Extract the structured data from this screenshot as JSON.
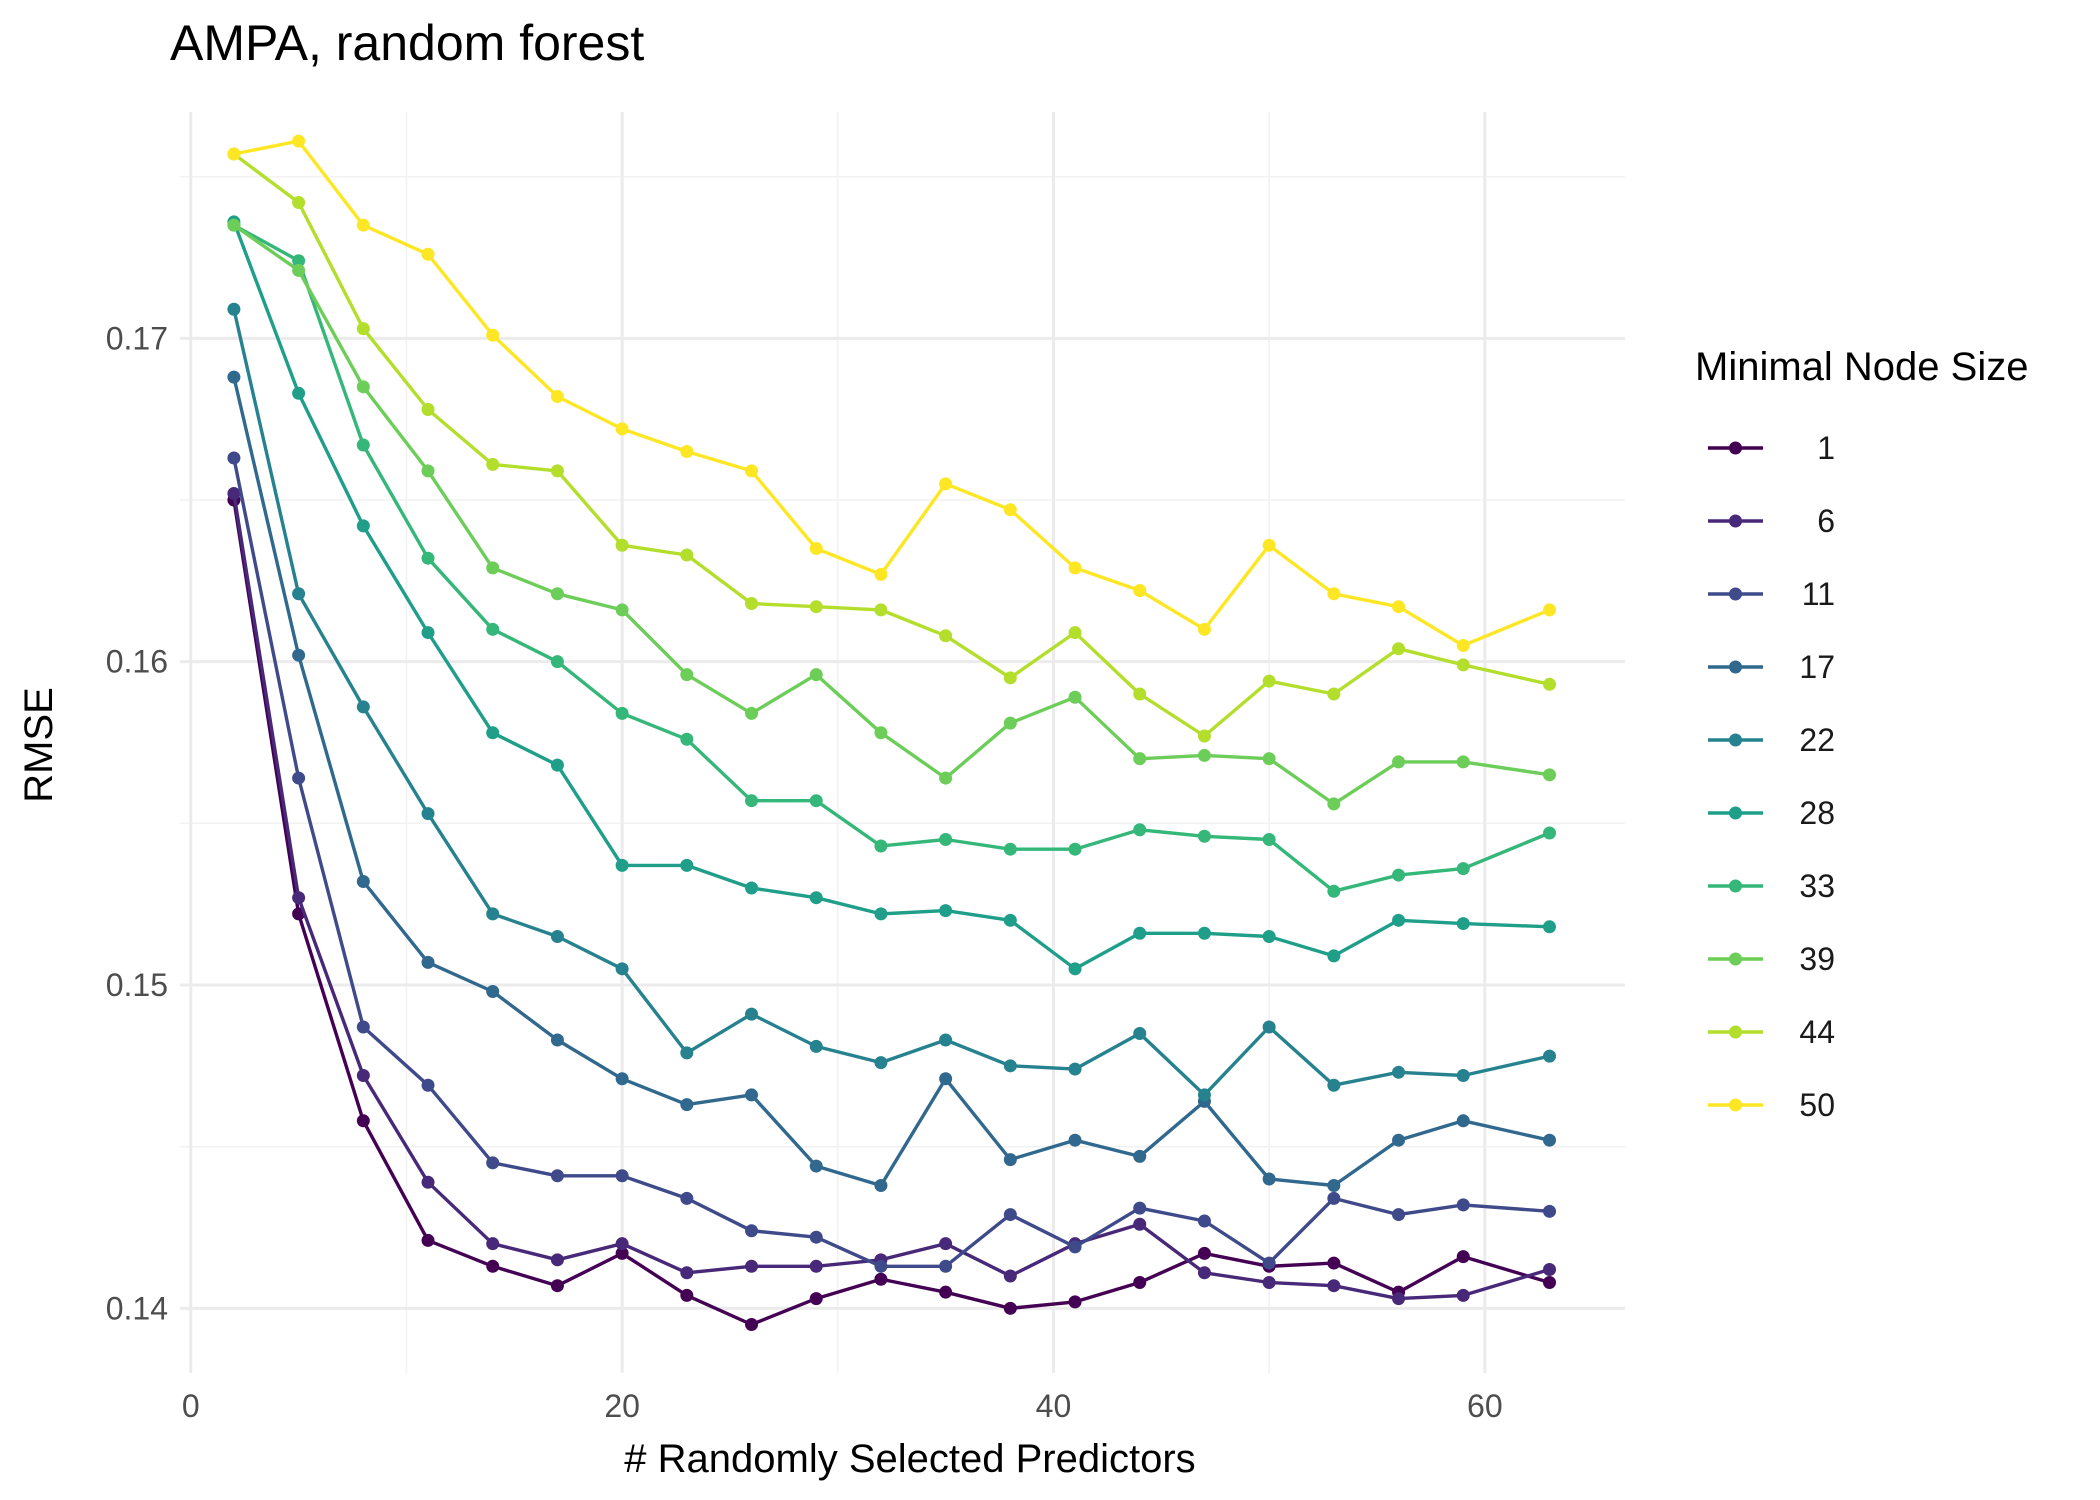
{
  "chart_data": {
    "type": "line",
    "title": "AMPA, random forest",
    "xlabel": "# Randomly Selected Predictors",
    "ylabel": "RMSE",
    "xlim": [
      -0.5,
      66.5
    ],
    "ylim": [
      0.138,
      0.177
    ],
    "x_ticks": [
      0,
      20,
      40,
      60
    ],
    "x_tick_labels": [
      "0",
      "20",
      "40",
      "60"
    ],
    "x_minor_ticks": [
      10,
      30,
      50
    ],
    "y_ticks": [
      0.14,
      0.15,
      0.16,
      0.17
    ],
    "y_tick_labels": [
      "0.14",
      "0.15",
      "0.16",
      "0.17"
    ],
    "y_minor_ticks": [
      0.145,
      0.155,
      0.165,
      0.175
    ],
    "grid": true,
    "legend": {
      "title": "Minimal Node Size",
      "position": "right"
    },
    "x": [
      2,
      5,
      8,
      11,
      14,
      17,
      20,
      23,
      26,
      29,
      32,
      35,
      38,
      41,
      44,
      47,
      50,
      53,
      56,
      59,
      63
    ],
    "series": [
      {
        "name": "1",
        "color": "#440154",
        "values": [
          0.165,
          0.1522,
          0.1458,
          0.1421,
          0.1413,
          0.1407,
          0.1417,
          0.1404,
          0.1395,
          0.1403,
          0.1409,
          0.1405,
          0.14,
          0.1402,
          0.1408,
          0.1417,
          0.1413,
          0.1414,
          0.1405,
          0.1416,
          0.1408
        ]
      },
      {
        "name": "6",
        "color": "#482878",
        "values": [
          0.1652,
          0.1527,
          0.1472,
          0.1439,
          0.142,
          0.1415,
          0.142,
          0.1411,
          0.1413,
          0.1413,
          0.1415,
          0.142,
          0.141,
          0.142,
          0.1426,
          0.1411,
          0.1408,
          0.1407,
          0.1403,
          0.1404,
          0.1412
        ]
      },
      {
        "name": "11",
        "color": "#3E4A89",
        "values": [
          0.1663,
          0.1564,
          0.1487,
          0.1469,
          0.1445,
          0.1441,
          0.1441,
          0.1434,
          0.1424,
          0.1422,
          0.1413,
          0.1413,
          0.1429,
          0.1419,
          0.1431,
          0.1427,
          0.1414,
          0.1434,
          0.1429,
          0.1432,
          0.143
        ]
      },
      {
        "name": "17",
        "color": "#31688E",
        "values": [
          0.1688,
          0.1602,
          0.1532,
          0.1507,
          0.1498,
          0.1483,
          0.1471,
          0.1463,
          0.1466,
          0.1444,
          0.1438,
          0.1471,
          0.1446,
          0.1452,
          0.1447,
          0.1464,
          0.144,
          0.1438,
          0.1452,
          0.1458,
          0.1452
        ]
      },
      {
        "name": "22",
        "color": "#26828E",
        "values": [
          0.1709,
          0.1621,
          0.1586,
          0.1553,
          0.1522,
          0.1515,
          0.1505,
          0.1479,
          0.1491,
          0.1481,
          0.1476,
          0.1483,
          0.1475,
          0.1474,
          0.1485,
          0.1466,
          0.1487,
          0.1469,
          0.1473,
          0.1472,
          0.1478
        ]
      },
      {
        "name": "28",
        "color": "#1F9E89",
        "values": [
          0.1736,
          0.1683,
          0.1642,
          0.1609,
          0.1578,
          0.1568,
          0.1537,
          0.1537,
          0.153,
          0.1527,
          0.1522,
          0.1523,
          0.152,
          0.1505,
          0.1516,
          0.1516,
          0.1515,
          0.1509,
          0.152,
          0.1519,
          0.1518
        ]
      },
      {
        "name": "33",
        "color": "#35B779",
        "values": [
          0.1735,
          0.1724,
          0.1667,
          0.1632,
          0.161,
          0.16,
          0.1584,
          0.1576,
          0.1557,
          0.1557,
          0.1543,
          0.1545,
          0.1542,
          0.1542,
          0.1548,
          0.1546,
          0.1545,
          0.1529,
          0.1534,
          0.1536,
          0.1547
        ]
      },
      {
        "name": "39",
        "color": "#6DCD59",
        "values": [
          0.1735,
          0.1721,
          0.1685,
          0.1659,
          0.1629,
          0.1621,
          0.1616,
          0.1596,
          0.1584,
          0.1596,
          0.1578,
          0.1564,
          0.1581,
          0.1589,
          0.157,
          0.1571,
          0.157,
          0.1556,
          0.1569,
          0.1569,
          0.1565
        ]
      },
      {
        "name": "44",
        "color": "#B4DE2C",
        "values": [
          0.1757,
          0.1742,
          0.1703,
          0.1678,
          0.1661,
          0.1659,
          0.1636,
          0.1633,
          0.1618,
          0.1617,
          0.1616,
          0.1608,
          0.1595,
          0.1609,
          0.159,
          0.1577,
          0.1594,
          0.159,
          0.1604,
          0.1599,
          0.1593
        ]
      },
      {
        "name": "50",
        "color": "#FDE725",
        "values": [
          0.1757,
          0.1761,
          0.1735,
          0.1726,
          0.1701,
          0.1682,
          0.1672,
          0.1665,
          0.1659,
          0.1635,
          0.1627,
          0.1655,
          0.1647,
          0.1629,
          0.1622,
          0.161,
          0.1636,
          0.1621,
          0.1617,
          0.1605,
          0.1616
        ]
      }
    ]
  }
}
